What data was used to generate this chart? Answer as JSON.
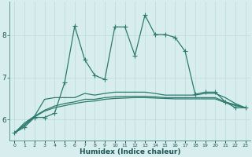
{
  "xlabel": "Humidex (Indice chaleur)",
  "x": [
    0,
    1,
    2,
    3,
    4,
    5,
    6,
    7,
    8,
    9,
    10,
    11,
    12,
    13,
    14,
    15,
    16,
    17,
    18,
    19,
    20,
    21,
    22,
    23
  ],
  "line1": [
    5.68,
    5.82,
    6.05,
    6.05,
    6.15,
    6.88,
    8.22,
    7.42,
    7.05,
    6.95,
    8.2,
    8.2,
    7.52,
    8.48,
    8.02,
    8.02,
    7.95,
    7.62,
    6.6,
    6.65,
    6.65,
    6.42,
    6.28,
    6.28
  ],
  "line2": [
    5.68,
    5.92,
    6.08,
    6.48,
    6.52,
    6.52,
    6.52,
    6.62,
    6.58,
    6.62,
    6.65,
    6.65,
    6.65,
    6.65,
    6.62,
    6.58,
    6.58,
    6.58,
    6.58,
    6.62,
    6.62,
    6.52,
    6.38,
    6.28
  ],
  "line3": [
    5.68,
    5.88,
    6.08,
    6.22,
    6.32,
    6.38,
    6.42,
    6.48,
    6.48,
    6.52,
    6.54,
    6.55,
    6.55,
    6.55,
    6.54,
    6.52,
    6.52,
    6.52,
    6.52,
    6.52,
    6.52,
    6.42,
    6.35,
    6.28
  ],
  "line4": [
    5.68,
    5.86,
    6.06,
    6.2,
    6.28,
    6.33,
    6.38,
    6.42,
    6.44,
    6.48,
    6.5,
    6.51,
    6.52,
    6.52,
    6.51,
    6.5,
    6.49,
    6.49,
    6.49,
    6.49,
    6.49,
    6.4,
    6.33,
    6.28
  ],
  "line_color": "#2d7a6e",
  "bg_color": "#d8eeee",
  "grid_color": "#c0dede",
  "ylim": [
    5.5,
    8.8
  ],
  "yticks": [
    6,
    7,
    8
  ],
  "xlim": [
    -0.5,
    23.5
  ]
}
